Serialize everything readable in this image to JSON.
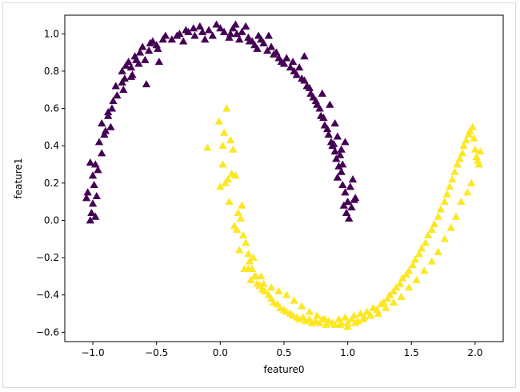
{
  "chart_data": {
    "type": "scatter",
    "xlabel": "feature0",
    "ylabel": "feature1",
    "xlim": [
      -1.22,
      2.22
    ],
    "ylim": [
      -0.65,
      1.1
    ],
    "xticks": [
      -1.0,
      -0.5,
      0.0,
      0.5,
      1.0,
      1.5,
      2.0
    ],
    "xtick_labels": [
      "−1.0",
      "−0.5",
      "0.0",
      "0.5",
      "1.0",
      "1.5",
      "2.0"
    ],
    "yticks": [
      -0.6,
      -0.4,
      -0.2,
      0.0,
      0.2,
      0.4,
      0.6,
      0.8,
      1.0
    ],
    "ytick_labels": [
      "−0.6",
      "−0.4",
      "−0.2",
      "0.0",
      "0.2",
      "0.4",
      "0.6",
      "0.8",
      "1.0"
    ],
    "grid": false,
    "marker": "triangle",
    "series": [
      {
        "color": "#440154",
        "x": [
          -1.02,
          -1.01,
          -0.98,
          -1.0,
          -0.97,
          -0.99,
          -1.0,
          -0.96,
          -1.04,
          -0.98,
          -1.05,
          -1.02,
          -0.93,
          -0.95,
          -0.91,
          -0.9,
          -0.93,
          -0.88,
          -0.88,
          -0.85,
          -0.84,
          -0.81,
          -0.82,
          -0.76,
          -0.77,
          -0.75,
          -0.77,
          -0.7,
          -0.74,
          -0.72,
          -0.7,
          -0.66,
          -0.67,
          -0.64,
          -0.63,
          -0.59,
          -0.61,
          -0.56,
          -0.55,
          -0.5,
          -0.53,
          -0.49,
          -0.45,
          -0.43,
          -0.38,
          -0.34,
          -0.32,
          -0.29,
          -0.27,
          -0.25,
          -0.21,
          -0.2,
          -0.16,
          -0.14,
          -0.12,
          -0.09,
          -0.06,
          -0.03,
          0.0,
          0.03,
          0.07,
          0.1,
          0.13,
          0.15,
          0.17,
          0.2,
          0.22,
          0.25,
          0.27,
          0.29,
          0.32,
          0.34,
          0.37,
          0.4,
          0.42,
          0.44,
          0.46,
          0.48,
          0.5,
          0.52,
          0.55,
          0.57,
          0.58,
          0.6,
          0.62,
          0.64,
          0.66,
          0.68,
          0.7,
          0.71,
          0.73,
          0.75,
          0.76,
          0.78,
          0.79,
          0.81,
          0.82,
          0.84,
          0.85,
          0.87,
          0.88,
          0.9,
          0.91,
          0.93,
          0.95,
          0.92,
          0.96,
          0.98,
          1.0,
          0.97,
          0.99,
          1.01,
          1.03,
          1.05,
          1.02,
          0.96,
          0.94,
          0.92,
          0.98,
          1.06,
          1.04,
          0.95,
          0.9,
          0.86,
          -0.58,
          -0.48,
          0.23,
          0.12,
          0.3,
          0.66,
          0.8,
          0.89,
          -0.86,
          -0.69,
          0.08,
          0.38
        ],
        "y": [
          0.0,
          0.04,
          0.02,
          0.09,
          0.13,
          0.19,
          0.24,
          0.27,
          0.15,
          0.3,
          0.12,
          0.31,
          0.36,
          0.42,
          0.46,
          0.48,
          0.52,
          0.56,
          0.58,
          0.6,
          0.64,
          0.67,
          0.72,
          0.7,
          0.74,
          0.76,
          0.8,
          0.77,
          0.83,
          0.85,
          0.82,
          0.86,
          0.88,
          0.84,
          0.9,
          0.86,
          0.93,
          0.91,
          0.95,
          0.94,
          0.96,
          0.92,
          0.97,
          0.99,
          0.97,
          0.99,
          1.0,
          0.96,
          1.02,
          1.01,
          1.03,
          0.99,
          1.04,
          1.01,
          0.97,
          1.02,
          0.99,
          1.05,
          1.03,
          1.01,
          0.98,
          1.03,
          1.0,
          0.97,
          1.01,
          1.04,
          0.98,
          0.96,
          0.94,
          0.92,
          0.97,
          0.95,
          0.91,
          0.93,
          0.89,
          0.9,
          0.87,
          0.85,
          0.84,
          0.87,
          0.82,
          0.85,
          0.8,
          0.78,
          0.82,
          0.76,
          0.75,
          0.72,
          0.71,
          0.68,
          0.66,
          0.64,
          0.62,
          0.6,
          0.56,
          0.55,
          0.51,
          0.49,
          0.46,
          0.42,
          0.4,
          0.37,
          0.33,
          0.29,
          0.26,
          0.23,
          0.19,
          0.15,
          0.1,
          0.08,
          0.04,
          0.01,
          0.07,
          0.11,
          0.18,
          0.3,
          0.35,
          0.45,
          0.42,
          0.12,
          0.22,
          0.38,
          0.52,
          0.62,
          0.73,
          0.85,
          0.96,
          1.05,
          0.99,
          0.88,
          0.68,
          0.41,
          0.5,
          0.78,
          1.0,
          0.99
        ],
        "name": ""
      },
      {
        "color": "#fde725",
        "x": [
          0.05,
          -0.01,
          0.03,
          0.08,
          0.1,
          0.02,
          0.06,
          0.0,
          0.12,
          0.07,
          0.14,
          0.16,
          0.11,
          0.18,
          0.2,
          0.15,
          0.22,
          0.23,
          0.19,
          0.25,
          0.27,
          0.24,
          0.29,
          0.31,
          0.33,
          0.35,
          0.38,
          0.4,
          0.42,
          0.45,
          0.47,
          0.5,
          0.52,
          0.55,
          0.57,
          0.6,
          0.62,
          0.65,
          0.67,
          0.7,
          0.72,
          0.75,
          0.78,
          0.8,
          0.83,
          0.85,
          0.88,
          0.9,
          0.93,
          0.95,
          0.98,
          1.0,
          1.03,
          1.05,
          1.08,
          1.1,
          1.13,
          1.15,
          1.18,
          1.2,
          1.23,
          1.26,
          1.28,
          1.31,
          1.33,
          1.36,
          1.38,
          1.41,
          1.43,
          1.46,
          1.48,
          1.51,
          1.53,
          1.56,
          1.58,
          1.61,
          1.63,
          1.66,
          1.68,
          1.71,
          1.73,
          1.76,
          1.78,
          1.8,
          1.82,
          1.84,
          1.86,
          1.88,
          1.9,
          1.91,
          1.93,
          1.95,
          1.96,
          1.98,
          1.99,
          2.0,
          2.01,
          2.02,
          2.03,
          2.04,
          1.97,
          1.94,
          1.89,
          1.85,
          1.81,
          1.76,
          1.71,
          1.66,
          1.6,
          1.54,
          1.48,
          1.42,
          1.36,
          1.3,
          1.24,
          1.18,
          1.12,
          1.06,
          1.0,
          0.94,
          0.88,
          0.82,
          0.76,
          0.7,
          0.64,
          0.58,
          0.52,
          0.46,
          0.4,
          0.34,
          0.28,
          0.22,
          -0.1,
          0.02,
          0.09,
          0.04,
          0.17,
          0.13,
          0.26,
          0.32
        ],
        "y": [
          0.6,
          0.53,
          0.47,
          0.43,
          0.38,
          0.3,
          0.22,
          0.18,
          0.24,
          0.1,
          0.04,
          0.01,
          -0.03,
          -0.08,
          -0.12,
          -0.16,
          -0.18,
          -0.22,
          -0.26,
          -0.26,
          -0.3,
          -0.32,
          -0.34,
          -0.35,
          -0.37,
          -0.38,
          -0.4,
          -0.42,
          -0.44,
          -0.45,
          -0.47,
          -0.48,
          -0.49,
          -0.5,
          -0.51,
          -0.52,
          -0.53,
          -0.52,
          -0.54,
          -0.53,
          -0.55,
          -0.54,
          -0.55,
          -0.53,
          -0.56,
          -0.54,
          -0.55,
          -0.56,
          -0.53,
          -0.55,
          -0.52,
          -0.55,
          -0.53,
          -0.51,
          -0.54,
          -0.5,
          -0.52,
          -0.49,
          -0.51,
          -0.47,
          -0.48,
          -0.45,
          -0.44,
          -0.42,
          -0.4,
          -0.38,
          -0.36,
          -0.34,
          -0.31,
          -0.29,
          -0.27,
          -0.24,
          -0.21,
          -0.18,
          -0.15,
          -0.12,
          -0.08,
          -0.05,
          -0.02,
          0.02,
          0.06,
          0.1,
          0.14,
          0.18,
          0.22,
          0.26,
          0.3,
          0.33,
          0.36,
          0.4,
          0.43,
          0.46,
          0.48,
          0.5,
          0.44,
          0.38,
          0.34,
          0.32,
          0.3,
          0.37,
          0.2,
          0.15,
          0.1,
          0.02,
          -0.04,
          -0.1,
          -0.17,
          -0.22,
          -0.27,
          -0.32,
          -0.36,
          -0.41,
          -0.44,
          -0.47,
          -0.5,
          -0.51,
          -0.53,
          -0.55,
          -0.57,
          -0.56,
          -0.55,
          -0.53,
          -0.51,
          -0.49,
          -0.46,
          -0.43,
          -0.4,
          -0.38,
          -0.36,
          -0.34,
          -0.3,
          -0.26,
          0.39,
          0.4,
          0.25,
          0.2,
          0.08,
          -0.05,
          -0.2,
          -0.3
        ],
        "name": ""
      }
    ]
  }
}
